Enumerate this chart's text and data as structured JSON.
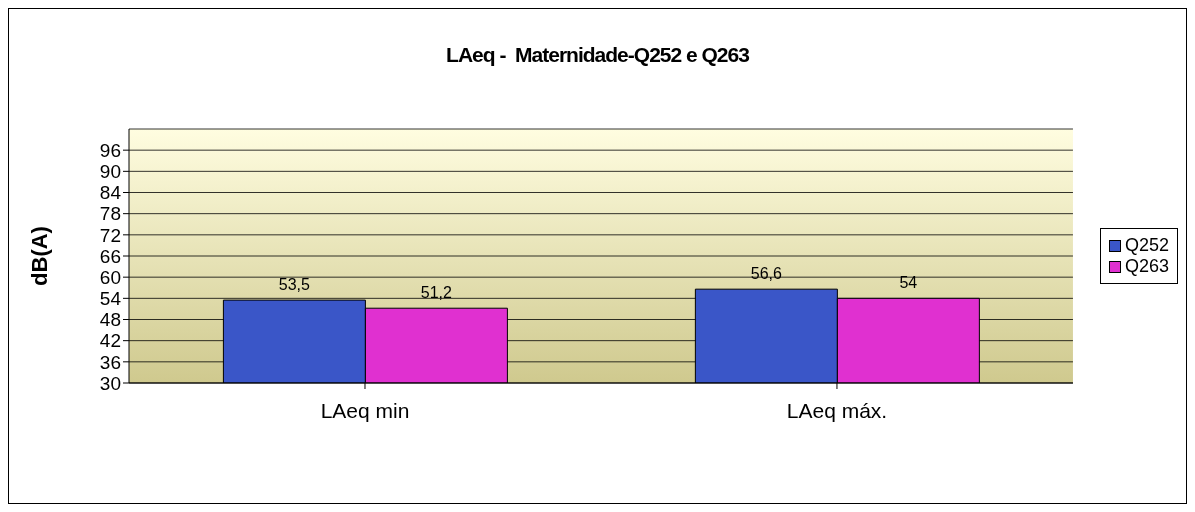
{
  "chart_data": {
    "type": "bar",
    "title": "LAeq -  Maternidade-Q252 e Q263",
    "ylabel": "dB(A)",
    "categories": [
      "LAeq min",
      "LAeq máx."
    ],
    "series": [
      {
        "name": "Q252",
        "color": "#3a56c8",
        "values": [
          53.5,
          56.6
        ],
        "value_labels": [
          "53,5",
          "56,6"
        ]
      },
      {
        "name": "Q263",
        "color": "#e030d0",
        "values": [
          51.2,
          54
        ],
        "value_labels": [
          "51,2",
          "54"
        ]
      }
    ],
    "ylim": [
      30,
      102
    ],
    "yticks": [
      30,
      36,
      42,
      48,
      54,
      60,
      66,
      72,
      78,
      84,
      90,
      96
    ],
    "grid": "y",
    "legend": "right"
  }
}
